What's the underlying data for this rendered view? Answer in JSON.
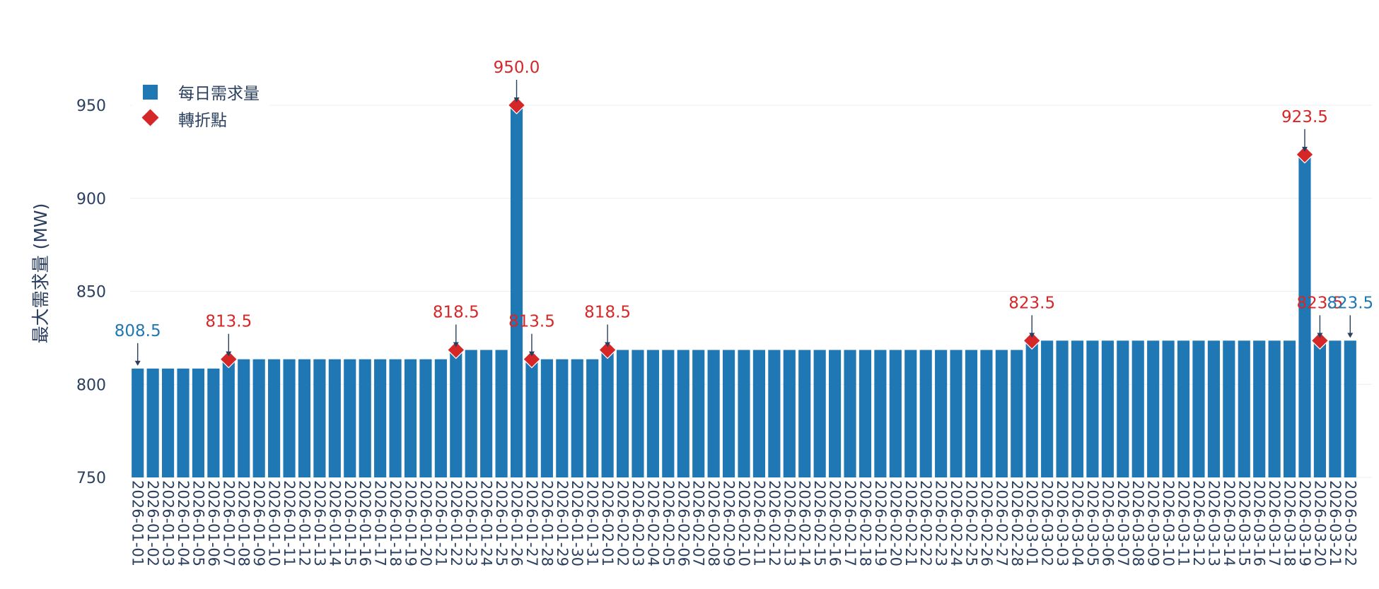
{
  "chart_data": {
    "type": "bar",
    "ylabel": "最大需求量 (MW)",
    "xlabel": "",
    "ylim": [
      750,
      975
    ],
    "yticks": [
      750,
      800,
      850,
      900,
      950
    ],
    "grid": true,
    "legend_position": "top-left",
    "colors": {
      "bar": "#1f77b4",
      "marker": "#d62728",
      "tick": "#2a3f5f",
      "grid": "#ebedf0"
    },
    "categories": [
      "2026-01-01",
      "2026-01-02",
      "2026-01-03",
      "2026-01-04",
      "2026-01-05",
      "2026-01-06",
      "2026-01-07",
      "2026-01-08",
      "2026-01-09",
      "2026-01-10",
      "2026-01-11",
      "2026-01-12",
      "2026-01-13",
      "2026-01-14",
      "2026-01-15",
      "2026-01-16",
      "2026-01-17",
      "2026-01-18",
      "2026-01-19",
      "2026-01-20",
      "2026-01-21",
      "2026-01-22",
      "2026-01-23",
      "2026-01-24",
      "2026-01-25",
      "2026-01-26",
      "2026-01-27",
      "2026-01-28",
      "2026-01-29",
      "2026-01-30",
      "2026-01-31",
      "2026-02-01",
      "2026-02-02",
      "2026-02-03",
      "2026-02-04",
      "2026-02-05",
      "2026-02-06",
      "2026-02-07",
      "2026-02-08",
      "2026-02-09",
      "2026-02-10",
      "2026-02-11",
      "2026-02-12",
      "2026-02-13",
      "2026-02-14",
      "2026-02-15",
      "2026-02-16",
      "2026-02-17",
      "2026-02-18",
      "2026-02-19",
      "2026-02-20",
      "2026-02-21",
      "2026-02-22",
      "2026-02-23",
      "2026-02-24",
      "2026-02-25",
      "2026-02-26",
      "2026-02-27",
      "2026-02-28",
      "2026-03-01",
      "2026-03-02",
      "2026-03-03",
      "2026-03-04",
      "2026-03-05",
      "2026-03-06",
      "2026-03-07",
      "2026-03-08",
      "2026-03-09",
      "2026-03-10",
      "2026-03-11",
      "2026-03-12",
      "2026-03-13",
      "2026-03-14",
      "2026-03-15",
      "2026-03-16",
      "2026-03-17",
      "2026-03-18",
      "2026-03-19",
      "2026-03-20",
      "2026-03-21",
      "2026-03-22"
    ],
    "series": [
      {
        "name": "每日需求量",
        "values": [
          808.5,
          808.5,
          808.5,
          808.5,
          808.5,
          808.5,
          813.5,
          813.5,
          813.5,
          813.5,
          813.5,
          813.5,
          813.5,
          813.5,
          813.5,
          813.5,
          813.5,
          813.5,
          813.5,
          813.5,
          813.5,
          818.5,
          818.5,
          818.5,
          818.5,
          950.0,
          813.5,
          813.5,
          813.5,
          813.5,
          813.5,
          818.5,
          818.5,
          818.5,
          818.5,
          818.5,
          818.5,
          818.5,
          818.5,
          818.5,
          818.5,
          818.5,
          818.5,
          818.5,
          818.5,
          818.5,
          818.5,
          818.5,
          818.5,
          818.5,
          818.5,
          818.5,
          818.5,
          818.5,
          818.5,
          818.5,
          818.5,
          818.5,
          818.5,
          823.5,
          823.5,
          823.5,
          823.5,
          823.5,
          823.5,
          823.5,
          823.5,
          823.5,
          823.5,
          823.5,
          823.5,
          823.5,
          823.5,
          823.5,
          823.5,
          823.5,
          823.5,
          923.5,
          823.5,
          823.5,
          823.5
        ]
      },
      {
        "name": "轉折點",
        "points": [
          {
            "x": "2026-01-07",
            "y": 813.5
          },
          {
            "x": "2026-01-22",
            "y": 818.5
          },
          {
            "x": "2026-01-26",
            "y": 950.0
          },
          {
            "x": "2026-01-27",
            "y": 813.5
          },
          {
            "x": "2026-02-01",
            "y": 818.5
          },
          {
            "x": "2026-03-01",
            "y": 823.5
          },
          {
            "x": "2026-03-19",
            "y": 923.5
          },
          {
            "x": "2026-03-20",
            "y": 823.5
          }
        ]
      }
    ],
    "annotations": [
      {
        "x": "2026-01-01",
        "y": 808.5,
        "text": "808.5",
        "color": "#1f77b4"
      },
      {
        "x": "2026-01-07",
        "y": 813.5,
        "text": "813.5",
        "color": "#d62728"
      },
      {
        "x": "2026-01-22",
        "y": 818.5,
        "text": "818.5",
        "color": "#d62728"
      },
      {
        "x": "2026-01-26",
        "y": 950.0,
        "text": "950.0",
        "color": "#d62728"
      },
      {
        "x": "2026-01-27",
        "y": 813.5,
        "text": "813.5",
        "color": "#d62728"
      },
      {
        "x": "2026-02-01",
        "y": 818.5,
        "text": "818.5",
        "color": "#d62728"
      },
      {
        "x": "2026-03-01",
        "y": 823.5,
        "text": "823.5",
        "color": "#d62728"
      },
      {
        "x": "2026-03-19",
        "y": 923.5,
        "text": "923.5",
        "color": "#d62728"
      },
      {
        "x": "2026-03-20",
        "y": 823.5,
        "text": "823.5",
        "color": "#d62728"
      },
      {
        "x": "2026-03-22",
        "y": 823.5,
        "text": "823.5",
        "color": "#1f77b4"
      }
    ]
  }
}
